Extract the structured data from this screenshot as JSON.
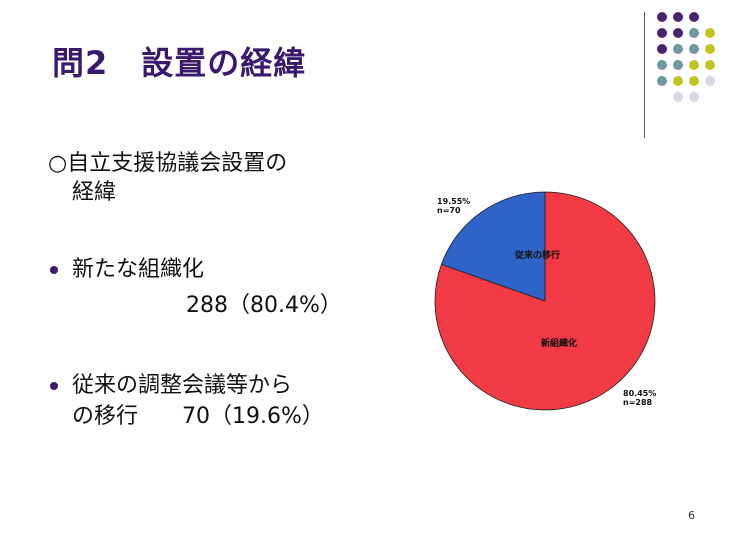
{
  "slide": {
    "title": "問2　設置の経緯",
    "heading_line1": "○自立支援協議会設置の",
    "heading_line2": "経緯",
    "bullet1_label": "新たな組織化",
    "bullet1_value": "288（80.4%）",
    "bullet2_line1": "従来の調整会議等から",
    "bullet2_line2": "の移行　　70（19.6%）",
    "page_number": "6"
  },
  "colors": {
    "title": "#3a1a6e",
    "dot_purple": "#4b2470",
    "dot_teal": "#6f9aa0",
    "dot_yellow": "#c4c421",
    "dot_light": "#d9d7e4"
  },
  "chart_data": {
    "type": "pie",
    "slices": [
      {
        "label": "新組織化",
        "value": 80.45,
        "pct_label": "80.45%",
        "n_label": "n=288",
        "color": "#f23a44"
      },
      {
        "label": "従来の移行",
        "value": 19.55,
        "pct_label": "19.55%",
        "n_label": "n=70",
        "color": "#2f63c8"
      }
    ],
    "start_angle_deg": 0,
    "direction": "clockwise"
  }
}
